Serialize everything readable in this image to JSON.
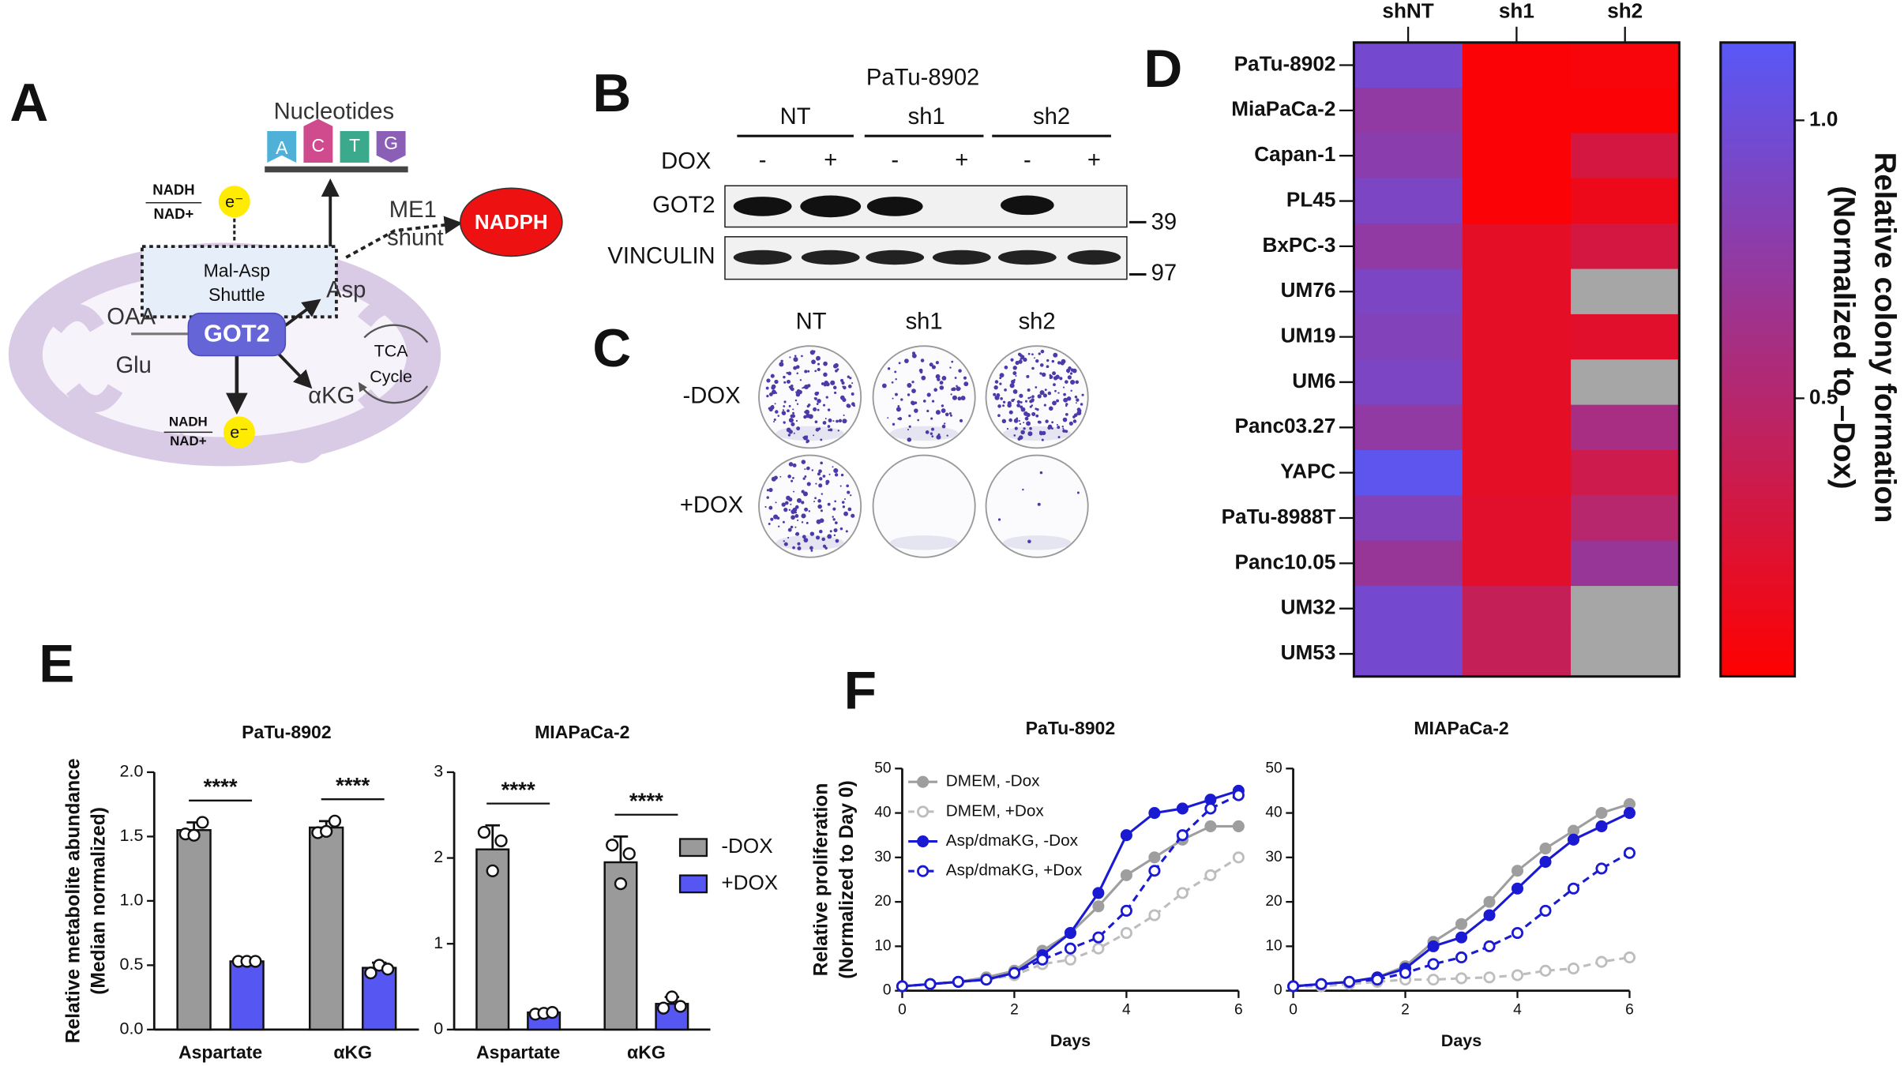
{
  "panel_labels": [
    "A",
    "B",
    "C",
    "D",
    "E",
    "F"
  ],
  "diagram": {
    "nucleotides": "Nucleotides",
    "bases": [
      "A",
      "C",
      "T",
      "G"
    ],
    "nadh_top": "NADH",
    "nad_top": "NAD+",
    "electron_top": "e⁻",
    "me1": "ME1",
    "shunt": "shunt",
    "nadph": "NADPH",
    "shuttle": [
      "Mal-Asp",
      "Shuttle"
    ],
    "oaa": "OAA",
    "got2": "GOT2",
    "glu": "Glu",
    "asp": "Asp",
    "akg": "αKG",
    "tca": [
      "TCA",
      "Cycle"
    ],
    "nadh_bottom": "NADH",
    "nad_bottom": "NAD+",
    "electron_bottom": "e⁻"
  },
  "blot": {
    "cell_line": "PaTu-8902",
    "groups": [
      "NT",
      "sh1",
      "sh2"
    ],
    "treatment": "DOX",
    "lanes": [
      "-",
      "+",
      "-",
      "+",
      "-",
      "+"
    ],
    "rows": [
      "GOT2",
      "VINCULIN"
    ],
    "markers": [
      39,
      97
    ]
  },
  "colony": {
    "columns": [
      "NT",
      "sh1",
      "sh2"
    ],
    "rows": [
      "-DOX",
      "+DOX"
    ]
  },
  "chart_data": [
    {
      "type": "heatmap",
      "columns": [
        "shNT",
        "sh1",
        "sh2"
      ],
      "rows": [
        "PaTu-8902",
        "MiaPaCa-2",
        "Capan-1",
        "PL45",
        "BxPC-3",
        "UM76",
        "UM19",
        "UM6",
        "Panc03.27",
        "YAPC",
        "PaTu-8988T",
        "Panc10.05",
        "UM32",
        "UM53"
      ],
      "values": [
        [
          0.95,
          0.03,
          0.05
        ],
        [
          0.75,
          0.03,
          0.03
        ],
        [
          0.8,
          0.03,
          0.3
        ],
        [
          0.9,
          0.03,
          0.12
        ],
        [
          0.75,
          0.18,
          0.3
        ],
        [
          0.9,
          0.18,
          null
        ],
        [
          0.85,
          0.18,
          0.2
        ],
        [
          0.9,
          0.18,
          null
        ],
        [
          0.75,
          0.18,
          0.6
        ],
        [
          1.1,
          0.18,
          0.35
        ],
        [
          0.85,
          0.2,
          0.5
        ],
        [
          0.7,
          0.2,
          0.7
        ],
        [
          0.95,
          0.4,
          null
        ],
        [
          0.95,
          0.4,
          null
        ]
      ],
      "zlim": [
        0,
        1.14
      ],
      "zticks": [
        0.5,
        {
          "value": 1,
          "label": "1.0"
        }
      ],
      "colormap": [
        "#ff0000",
        "#5858f8"
      ],
      "missing_color": "#a6a6a6",
      "colorbar_label": [
        "Relative colony formation",
        "(Normalized to –Dox)"
      ]
    },
    {
      "type": "bar",
      "title": "PaTu-8902",
      "ylabel": [
        "Relative metabolite abundance",
        "(Median normalized)"
      ],
      "categories": [
        "Aspartate",
        "αKG"
      ],
      "series": [
        {
          "color": "#9a9a9a",
          "values": [
            1.55,
            1.57
          ],
          "errors": [
            0.06,
            0.05
          ],
          "points": [
            [
              1.52,
              1.51,
              1.61
            ],
            [
              1.53,
              1.54,
              1.62
            ]
          ]
        },
        {
          "color": "#5656f2",
          "values": [
            0.53,
            0.48
          ],
          "errors": [
            0.02,
            0.04
          ],
          "points": [
            [
              0.53,
              0.53,
              0.53
            ],
            [
              0.44,
              0.5,
              0.47
            ]
          ]
        }
      ],
      "significance": [
        "****",
        "****"
      ],
      "ylim": [
        0,
        2
      ],
      "yticks": [
        {
          "value": 0,
          "label": "0.0"
        },
        0.5,
        {
          "value": 1,
          "label": "1.0"
        },
        1.5,
        {
          "value": 2,
          "label": "2.0"
        }
      ],
      "legend": false
    },
    {
      "type": "bar",
      "title": "MIAPaCa-2",
      "categories": [
        "Aspartate",
        "αKG"
      ],
      "series": [
        {
          "name": "-DOX",
          "color": "#9a9a9a",
          "values": [
            2.1,
            1.95
          ],
          "errors": [
            0.28,
            0.3
          ],
          "points": [
            [
              2.3,
              1.85,
              2.2
            ],
            [
              2.15,
              1.7,
              2.05
            ]
          ]
        },
        {
          "name": "+DOX",
          "color": "#5656f2",
          "values": [
            0.2,
            0.3
          ],
          "errors": [
            0.03,
            0.08
          ],
          "points": [
            [
              0.18,
              0.19,
              0.2
            ],
            [
              0.25,
              0.38,
              0.27
            ]
          ]
        }
      ],
      "significance": [
        "****",
        "****"
      ],
      "ylim": [
        0,
        3
      ],
      "yticks": [
        0,
        1,
        2,
        3
      ],
      "legend": true
    },
    {
      "type": "line",
      "title": "PaTu-8902",
      "ylabel": [
        "Relative proliferation",
        "(Normalized to Day 0)"
      ],
      "xlabel": "Days",
      "x": [
        0,
        0.5,
        1,
        1.5,
        2,
        2.5,
        3,
        3.5,
        4,
        4.5,
        5,
        5.5,
        6
      ],
      "series": [
        {
          "name": "DMEM, -Dox",
          "color": "#9e9e9e",
          "dashed": false,
          "open": false,
          "values": [
            1,
            1.5,
            2,
            3,
            4.5,
            9,
            13,
            19,
            26,
            30,
            34,
            37,
            37
          ]
        },
        {
          "name": "DMEM, +Dox",
          "color": "#bdbdbd",
          "dashed": true,
          "open": true,
          "values": [
            1,
            1.5,
            2,
            2.5,
            3.5,
            6,
            7,
            9.5,
            13,
            17,
            22,
            26,
            30
          ]
        },
        {
          "name": "Asp/dmaKG, -Dox",
          "color": "#1a1ad2",
          "dashed": false,
          "open": false,
          "values": [
            1,
            1.5,
            2,
            2.5,
            4,
            8,
            13,
            22,
            35,
            40,
            41,
            43,
            45
          ]
        },
        {
          "name": "Asp/dmaKG, +Dox",
          "color": "#1a1ad2",
          "dashed": true,
          "open": true,
          "values": [
            1,
            1.5,
            2,
            2.5,
            4,
            7,
            9.5,
            12,
            18,
            27,
            35,
            41,
            44
          ]
        }
      ],
      "xlim": [
        0,
        6
      ],
      "xticks": [
        0,
        2,
        4,
        6
      ],
      "ylim": [
        0,
        50
      ],
      "yticks": [
        0,
        10,
        20,
        30,
        40,
        50
      ],
      "legend": true
    },
    {
      "type": "line",
      "title": "MIAPaCa-2",
      "xlabel": "Days",
      "x": [
        0,
        0.5,
        1,
        1.5,
        2,
        2.5,
        3,
        3.5,
        4,
        4.5,
        5,
        5.5,
        6
      ],
      "series": [
        {
          "color": "#9e9e9e",
          "dashed": false,
          "open": false,
          "values": [
            1,
            1.5,
            2,
            3,
            5.5,
            11,
            15,
            20,
            27,
            32,
            36,
            40,
            42
          ]
        },
        {
          "color": "#bdbdbd",
          "dashed": true,
          "open": true,
          "values": [
            1,
            1,
            1.5,
            2,
            2.5,
            2.5,
            2.8,
            3,
            3.5,
            4.5,
            5,
            6.5,
            7.5
          ]
        },
        {
          "color": "#1a1ad2",
          "dashed": false,
          "open": false,
          "values": [
            1,
            1.5,
            2,
            3,
            5,
            10,
            12,
            17,
            23,
            29,
            34,
            37,
            40
          ]
        },
        {
          "color": "#1a1ad2",
          "dashed": true,
          "open": true,
          "values": [
            1,
            1.5,
            2,
            2.5,
            4,
            6,
            7.5,
            10,
            13,
            18,
            23,
            27.5,
            31
          ]
        }
      ],
      "xlim": [
        0,
        6
      ],
      "xticks": [
        0,
        2,
        4,
        6
      ],
      "ylim": [
        0,
        50
      ],
      "yticks": [
        0,
        10,
        20,
        30,
        40,
        50
      ],
      "legend": false
    }
  ]
}
